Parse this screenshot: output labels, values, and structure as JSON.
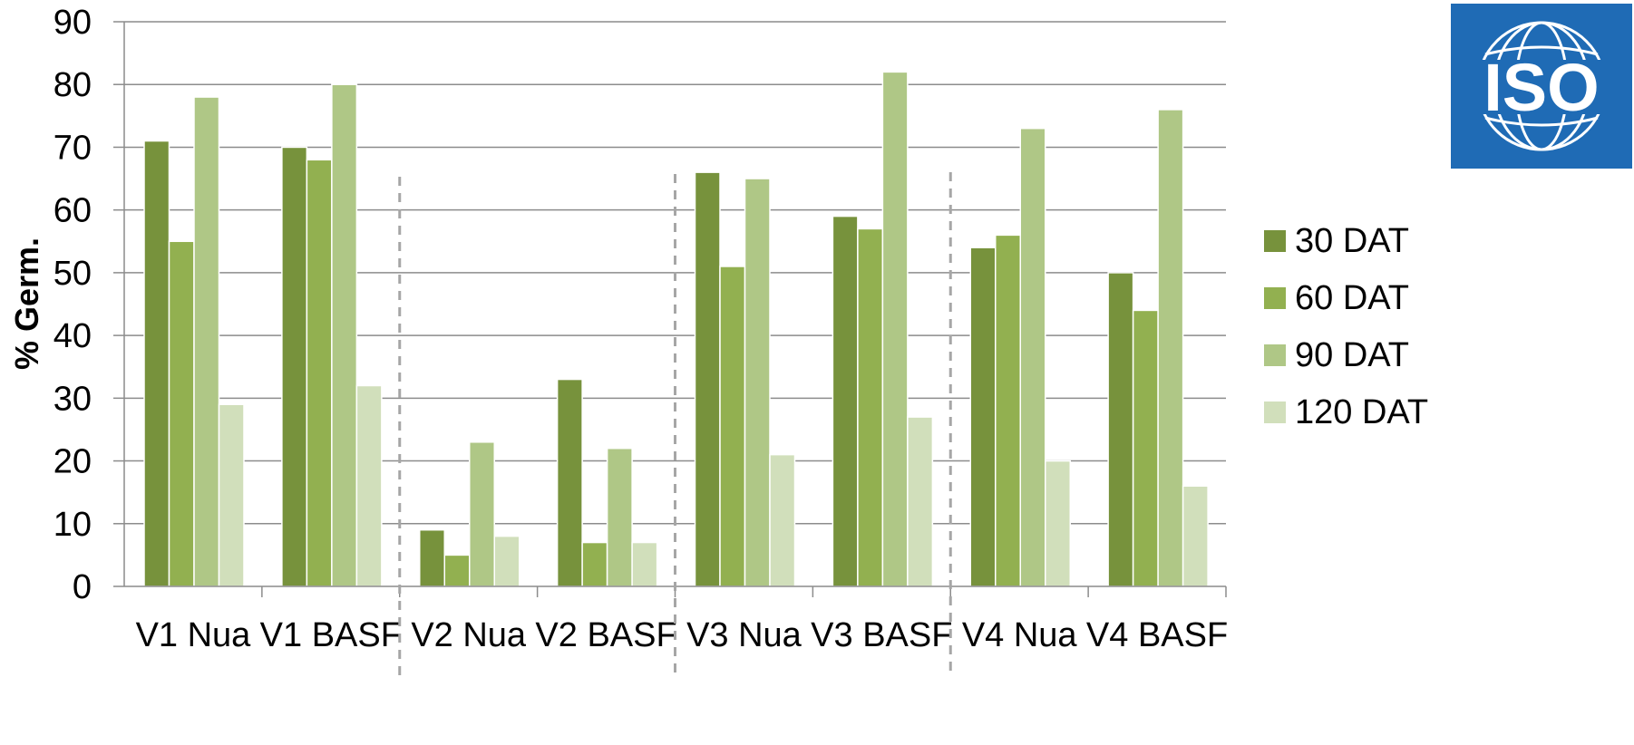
{
  "chart_data": {
    "type": "bar",
    "title": "",
    "xlabel": "",
    "ylabel": "% Germ.",
    "ylim": [
      0,
      90
    ],
    "yticks": [
      0,
      10,
      20,
      30,
      40,
      50,
      60,
      70,
      80,
      90
    ],
    "categories": [
      "V1 Nua",
      "V1 BASF",
      "V2 Nua",
      "V2 BASF",
      "V3 Nua",
      "V3 BASF",
      "V4 Nua",
      "V4 BASF"
    ],
    "series": [
      {
        "name": "30 DAT",
        "color": "#77923c",
        "values": [
          71,
          70,
          9,
          33,
          66,
          59,
          54,
          50
        ]
      },
      {
        "name": "60 DAT",
        "color": "#92b050",
        "values": [
          55,
          68,
          5,
          7,
          51,
          57,
          56,
          44
        ]
      },
      {
        "name": "90 DAT",
        "color": "#afc786",
        "values": [
          78,
          80,
          23,
          22,
          65,
          82,
          73,
          76
        ]
      },
      {
        "name": "120 DAT",
        "color": "#d1dfbb",
        "values": [
          29,
          32,
          8,
          7,
          21,
          27,
          20,
          16
        ]
      }
    ],
    "grid": true,
    "legend": "right",
    "group_separators": "dashed",
    "logo": {
      "text": "ISO",
      "background": "#1f6bb5"
    }
  }
}
